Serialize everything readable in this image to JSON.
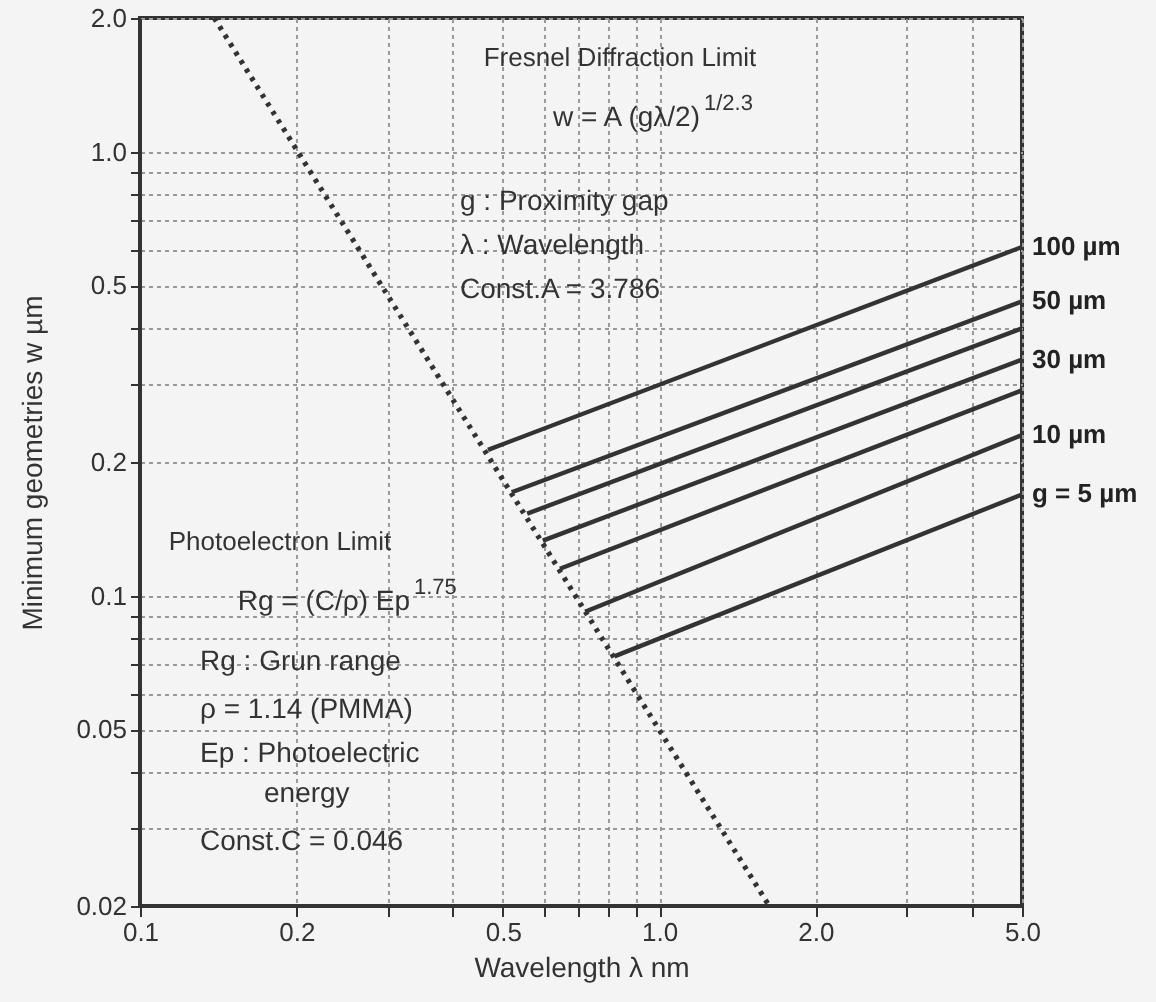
{
  "chart_data": {
    "type": "line",
    "xlabel": "Wavelength λ  nm",
    "ylabel": "Minimum geometries  w  µm",
    "series": [
      {
        "name": "100 µm",
        "color": "#333333",
        "x": [
          0.468,
          5.0
        ],
        "values": [
          0.213,
          0.61
        ]
      },
      {
        "name": "50 µm",
        "color": "#333333",
        "x": [
          0.52,
          5.0
        ],
        "values": [
          0.171,
          0.46
        ]
      },
      {
        "color": "#333333",
        "x": [
          0.557,
          5.0
        ],
        "values": [
          0.153,
          0.4
        ]
      },
      {
        "name": "30 µm",
        "color": "#333333",
        "x": [
          0.597,
          5.0
        ],
        "values": [
          0.133,
          0.34
        ]
      },
      {
        "color": "#333333",
        "x": [
          0.644,
          5.0
        ],
        "values": [
          0.115,
          0.29
        ]
      },
      {
        "name": "10 µm",
        "color": "#333333",
        "x": [
          0.72,
          5.0
        ],
        "values": [
          0.092,
          0.23
        ]
      },
      {
        "name": "g = 5 µm",
        "color": "#333333",
        "x": [
          0.82,
          5.0
        ],
        "values": [
          0.073,
          0.169
        ]
      },
      {
        "color": "#333333",
        "x": [
          0.139,
          1.63
        ],
        "values": [
          2.0,
          0.02
        ],
        "line_style": "dotted"
      }
    ],
    "xlim": [
      0.1,
      5.0
    ],
    "ylim": [
      0.02,
      2.0
    ],
    "xticks": [
      0.1,
      0.2,
      {
        "value": 0.3,
        "label": null
      },
      {
        "value": 0.4,
        "label": null
      },
      0.5,
      {
        "value": 0.6,
        "label": null
      },
      {
        "value": 0.7,
        "label": null
      },
      {
        "value": 0.8,
        "label": null
      },
      {
        "value": 0.9,
        "label": null
      },
      {
        "value": 1.0,
        "label": "1.0"
      },
      {
        "value": 2.0,
        "label": "2.0"
      },
      {
        "value": 3.0,
        "label": null
      },
      {
        "value": 4.0,
        "label": null
      },
      {
        "value": 5.0,
        "label": "5.0"
      }
    ],
    "yticks": [
      0.02,
      {
        "value": 0.03,
        "label": null
      },
      {
        "value": 0.04,
        "label": null
      },
      0.05,
      {
        "value": 0.06,
        "label": null
      },
      {
        "value": 0.07,
        "label": null
      },
      {
        "value": 0.08,
        "label": null
      },
      {
        "value": 0.09,
        "label": null
      },
      0.1,
      0.2,
      {
        "value": 0.3,
        "label": null
      },
      {
        "value": 0.4,
        "label": null
      },
      0.5,
      {
        "value": 0.6,
        "label": null
      },
      {
        "value": 0.7,
        "label": null
      },
      {
        "value": 0.8,
        "label": null
      },
      {
        "value": 0.9,
        "label": null
      },
      {
        "value": 1.0,
        "label": "1.0"
      },
      {
        "value": 2.0,
        "label": "2.0"
      }
    ],
    "log": "xy",
    "grid": true,
    "marker": "none",
    "line_style": "solid",
    "annotations": [
      "Fresnel Diffraction Limit",
      "w = A (gλ/2)$^{1/2.3}$",
      "g : Proximity gap",
      "λ : Wavelength",
      "Const.A = 3.786",
      "Photoelectron Limit",
      "Rg = (C/ρ) Ep$^{1.75}$",
      "Rg : Grun range",
      "ρ = 1.14 (PMMA)",
      "Ep : Photoelectric",
      "energy",
      "Const.C = 0.046"
    ]
  }
}
